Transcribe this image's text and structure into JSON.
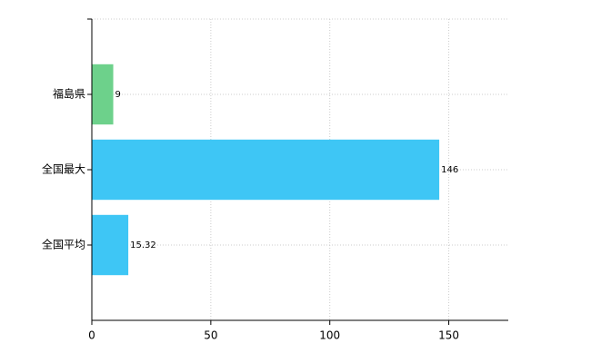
{
  "chart_data": {
    "type": "barh",
    "categories": [
      "福島県",
      "全国最大",
      "全国平均"
    ],
    "values": [
      9,
      146,
      15.32
    ],
    "colors": [
      "#6dd18b",
      "#3ec6f5",
      "#3ec6f5"
    ],
    "xlim": [
      0,
      175
    ],
    "xticks": [
      0,
      50,
      100,
      150
    ],
    "grid": true
  }
}
